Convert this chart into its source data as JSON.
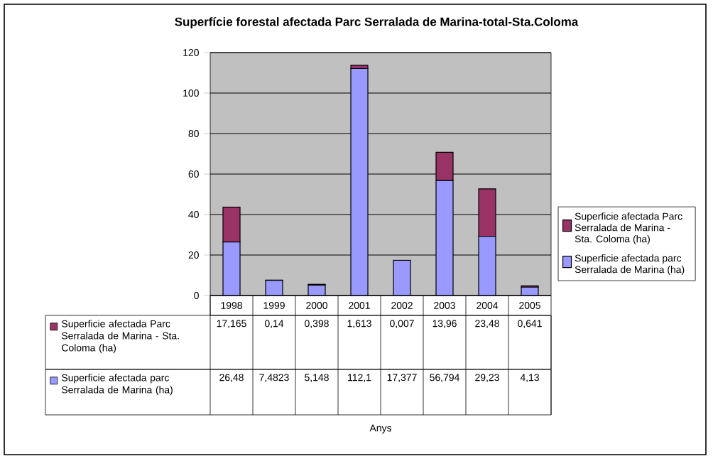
{
  "chart_data": {
    "type": "bar",
    "title": "Superfície forestal afectada Parc Serralada de Marina-total-Sta.Coloma",
    "annotations": [
      "Anys"
    ],
    "categories": [
      "1998",
      "1999",
      "2000",
      "2001",
      "2002",
      "2003",
      "2004",
      "2005"
    ],
    "stacked": true,
    "ylim": [
      0,
      120
    ],
    "yticks": [
      0,
      20,
      40,
      60,
      80,
      100,
      120
    ],
    "grid": "y",
    "legend": "right",
    "series": [
      {
        "name": "Superficie afectada parc Serralada de Marina (ha)",
        "color": "#9999ff",
        "values": [
          26.48,
          7.4823,
          5.148,
          112.1,
          17.377,
          56.794,
          29.23,
          4.13
        ],
        "value_labels": [
          "26,48",
          "7,4823",
          "5,148",
          "112,1",
          "17,377",
          "56,794",
          "29,23",
          "4,13"
        ]
      },
      {
        "name": "Superficie afectada Parc Serralada de Marina - Sta. Coloma (ha)",
        "color": "#993366",
        "values": [
          17.165,
          0.14,
          0.398,
          1.613,
          0.007,
          13.96,
          23.48,
          0.641
        ],
        "value_labels": [
          "17,165",
          "0,14",
          "0,398",
          "1,613",
          "0,007",
          "13,96",
          "23,48",
          "0,641"
        ]
      }
    ]
  }
}
